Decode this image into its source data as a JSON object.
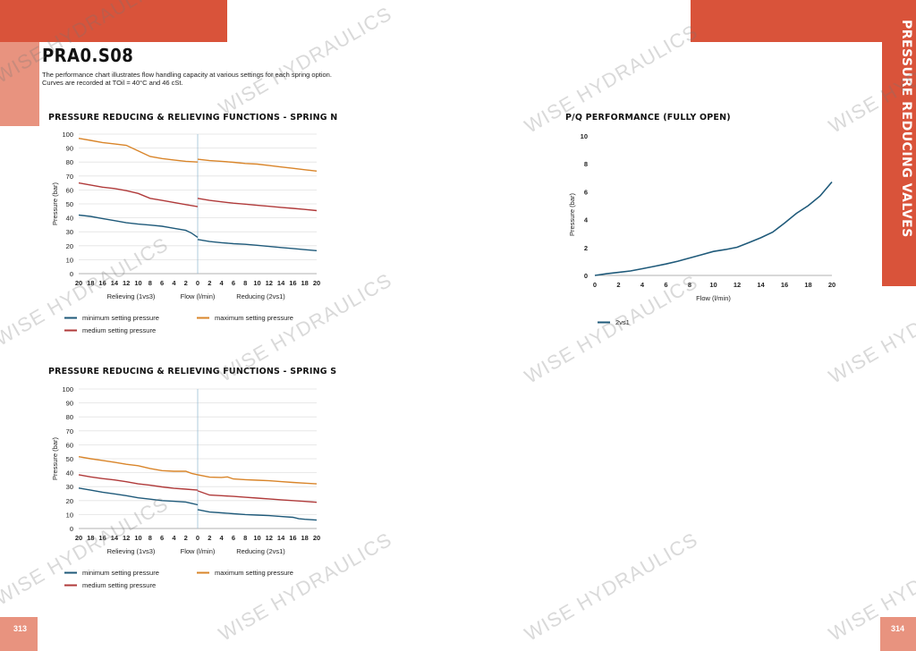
{
  "page": {
    "title": "PRA0.S08",
    "description_lines": [
      "The performance chart illustrates flow handling capacity at various settings for each spring option.",
      "Curves are recorded at TOil = 40°C and 46 cSt."
    ],
    "side_tab": "PRESSURE REDUCING VALVES",
    "page_left": "313",
    "page_right": "314",
    "watermark": "WISE HYDRAULICS",
    "colors": {
      "accent": "#d9533a",
      "accent_light": "#e8937f",
      "minimum": "#1f5a7a",
      "maximum": "#d9852a",
      "medium": "#b03a3a",
      "pq": "#1f5a7a"
    }
  },
  "chart_data": [
    {
      "type": "line",
      "title": "PRESSURE REDUCING & RELIEVING FUNCTIONS - SPRING N",
      "ylabel": "Pressure (bar)",
      "ylim": [
        0,
        100
      ],
      "yticks": [
        "0",
        "10",
        "20",
        "30",
        "40",
        "50",
        "60",
        "70",
        "80",
        "90",
        "100"
      ],
      "x_tick_labels": [
        "20",
        "18",
        "16",
        "14",
        "12",
        "10",
        "8",
        "6",
        "4",
        "2",
        "0",
        "2",
        "4",
        "6",
        "8",
        "10",
        "12",
        "14",
        "16",
        "18",
        "20"
      ],
      "x_group_labels": [
        "Relieving (1vs3)",
        "Flow (l/min)",
        "Reducing (2vs1)"
      ],
      "legend": [
        "minimum setting pressure",
        "maximum setting pressure",
        "medium setting pressure"
      ],
      "series": [
        {
          "name": "minimum setting pressure",
          "color": "#1f5a7a",
          "relieving": [
            [
              20,
              42
            ],
            [
              18,
              41
            ],
            [
              16,
              39.5
            ],
            [
              14,
              38
            ],
            [
              12,
              36.5
            ],
            [
              10,
              35.5
            ],
            [
              8,
              34.8
            ],
            [
              6,
              34
            ],
            [
              4,
              32.5
            ],
            [
              2,
              31
            ],
            [
              1,
              29
            ],
            [
              0,
              26
            ]
          ],
          "reducing": [
            [
              0,
              24.5
            ],
            [
              2,
              23
            ],
            [
              4,
              22.2
            ],
            [
              6,
              21.5
            ],
            [
              8,
              21
            ],
            [
              10,
              20.3
            ],
            [
              12,
              19.5
            ],
            [
              14,
              18.7
            ],
            [
              16,
              18
            ],
            [
              18,
              17.2
            ],
            [
              20,
              16.5
            ]
          ]
        },
        {
          "name": "maximum setting pressure",
          "color": "#d9852a",
          "relieving": [
            [
              20,
              97
            ],
            [
              18,
              95.5
            ],
            [
              16,
              94
            ],
            [
              14,
              93
            ],
            [
              12,
              92
            ],
            [
              10,
              88
            ],
            [
              8,
              84
            ],
            [
              6,
              82.5
            ],
            [
              4,
              81.5
            ],
            [
              2,
              80.5
            ],
            [
              0,
              80
            ]
          ],
          "reducing": [
            [
              0,
              82
            ],
            [
              2,
              81
            ],
            [
              4,
              80.5
            ],
            [
              6,
              79.8
            ],
            [
              8,
              79
            ],
            [
              10,
              78.5
            ],
            [
              12,
              77.5
            ],
            [
              14,
              76.5
            ],
            [
              16,
              75.5
            ],
            [
              18,
              74.5
            ],
            [
              20,
              73.5
            ]
          ]
        },
        {
          "name": "medium setting pressure",
          "color": "#b03a3a",
          "relieving": [
            [
              20,
              65
            ],
            [
              18,
              63.5
            ],
            [
              16,
              62
            ],
            [
              14,
              61
            ],
            [
              12,
              59.5
            ],
            [
              10,
              57.5
            ],
            [
              8,
              54
            ],
            [
              6,
              52.5
            ],
            [
              4,
              51
            ],
            [
              2,
              49.5
            ],
            [
              0,
              48
            ]
          ],
          "reducing": [
            [
              0,
              54
            ],
            [
              2,
              52.5
            ],
            [
              4,
              51.5
            ],
            [
              6,
              50.5
            ],
            [
              8,
              49.8
            ],
            [
              10,
              49
            ],
            [
              12,
              48.3
            ],
            [
              14,
              47.5
            ],
            [
              16,
              46.8
            ],
            [
              18,
              46
            ],
            [
              20,
              45.2
            ]
          ]
        }
      ]
    },
    {
      "type": "line",
      "title": "PRESSURE REDUCING & RELIEVING FUNCTIONS - SPRING S",
      "ylabel": "Pressure (bar)",
      "ylim": [
        0,
        100
      ],
      "yticks": [
        "0",
        "10",
        "20",
        "30",
        "40",
        "50",
        "60",
        "70",
        "80",
        "90",
        "100"
      ],
      "x_tick_labels": [
        "20",
        "18",
        "16",
        "14",
        "12",
        "10",
        "8",
        "6",
        "4",
        "2",
        "0",
        "2",
        "4",
        "6",
        "8",
        "10",
        "12",
        "14",
        "16",
        "18",
        "20"
      ],
      "x_group_labels": [
        "Relieving (1vs3)",
        "Flow (l/min)",
        "Reducing (2vs1)"
      ],
      "legend": [
        "minimum setting pressure",
        "maximum setting pressure",
        "medium setting pressure"
      ],
      "series": [
        {
          "name": "minimum setting pressure",
          "color": "#1f5a7a",
          "relieving": [
            [
              20,
              29
            ],
            [
              18,
              27.5
            ],
            [
              16,
              26
            ],
            [
              14,
              24.8
            ],
            [
              12,
              23.5
            ],
            [
              10,
              22
            ],
            [
              8,
              21
            ],
            [
              6,
              20
            ],
            [
              4,
              19.5
            ],
            [
              2,
              19
            ],
            [
              1,
              18
            ],
            [
              0,
              17
            ]
          ],
          "reducing": [
            [
              0,
              13.5
            ],
            [
              2,
              11.8
            ],
            [
              4,
              11.2
            ],
            [
              6,
              10.6
            ],
            [
              8,
              10
            ],
            [
              10,
              9.6
            ],
            [
              12,
              9.2
            ],
            [
              14,
              8.6
            ],
            [
              16,
              8
            ],
            [
              17,
              7
            ],
            [
              18,
              6.6
            ],
            [
              20,
              6
            ]
          ]
        },
        {
          "name": "maximum setting pressure",
          "color": "#d9852a",
          "relieving": [
            [
              20,
              51.5
            ],
            [
              18,
              50
            ],
            [
              16,
              48.8
            ],
            [
              14,
              47.5
            ],
            [
              12,
              46
            ],
            [
              10,
              45
            ],
            [
              8,
              43
            ],
            [
              6,
              41.5
            ],
            [
              4,
              41
            ],
            [
              2,
              41
            ],
            [
              1,
              39.5
            ],
            [
              0,
              38.5
            ]
          ],
          "reducing": [
            [
              0,
              38.5
            ],
            [
              2,
              36.8
            ],
            [
              4,
              36.6
            ],
            [
              5,
              37
            ],
            [
              6,
              35.5
            ],
            [
              8,
              35
            ],
            [
              10,
              34.6
            ],
            [
              12,
              34.2
            ],
            [
              14,
              33.6
            ],
            [
              16,
              33
            ],
            [
              18,
              32.5
            ],
            [
              20,
              32
            ]
          ]
        },
        {
          "name": "medium setting pressure",
          "color": "#b03a3a",
          "relieving": [
            [
              20,
              38.5
            ],
            [
              18,
              37
            ],
            [
              16,
              35.8
            ],
            [
              14,
              34.8
            ],
            [
              12,
              33.5
            ],
            [
              10,
              32
            ],
            [
              8,
              31
            ],
            [
              6,
              29.8
            ],
            [
              4,
              28.8
            ],
            [
              2,
              28.2
            ],
            [
              0,
              27.5
            ]
          ],
          "reducing": [
            [
              0,
              27
            ],
            [
              2,
              24
            ],
            [
              4,
              23.5
            ],
            [
              6,
              23
            ],
            [
              8,
              22.4
            ],
            [
              10,
              21.8
            ],
            [
              12,
              21.2
            ],
            [
              14,
              20.6
            ],
            [
              16,
              20
            ],
            [
              18,
              19.4
            ],
            [
              20,
              18.8
            ]
          ]
        }
      ]
    },
    {
      "type": "line",
      "title": "P/Q PERFORMANCE (FULLY OPEN)",
      "ylabel": "Pressure (bar)",
      "xlabel": "Flow (l/min)",
      "xlim": [
        0,
        20
      ],
      "ylim": [
        0,
        10
      ],
      "xticks": [
        "0",
        "2",
        "4",
        "6",
        "8",
        "10",
        "12",
        "14",
        "16",
        "18",
        "20"
      ],
      "yticks": [
        "0",
        "2",
        "4",
        "6",
        "8",
        "10"
      ],
      "legend": [
        "2vs1"
      ],
      "series": [
        {
          "name": "2vs1",
          "color": "#1f5a7a",
          "points": [
            [
              0,
              0
            ],
            [
              1,
              0.12
            ],
            [
              2,
              0.22
            ],
            [
              3,
              0.32
            ],
            [
              4,
              0.48
            ],
            [
              5,
              0.65
            ],
            [
              6,
              0.82
            ],
            [
              7,
              1.02
            ],
            [
              8,
              1.25
            ],
            [
              9,
              1.48
            ],
            [
              10,
              1.72
            ],
            [
              11,
              1.85
            ],
            [
              12,
              2.02
            ],
            [
              13,
              2.35
            ],
            [
              14,
              2.7
            ],
            [
              15,
              3.1
            ],
            [
              16,
              3.75
            ],
            [
              17,
              4.45
            ],
            [
              18,
              5.0
            ],
            [
              19,
              5.7
            ],
            [
              20,
              6.7
            ]
          ]
        }
      ]
    }
  ]
}
